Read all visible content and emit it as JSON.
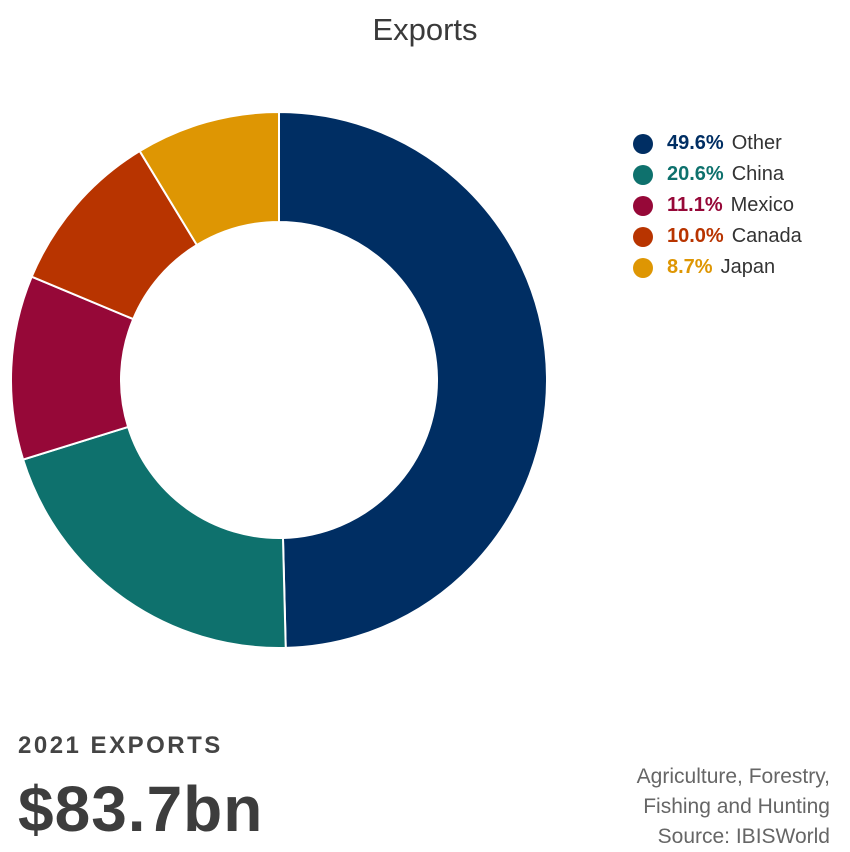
{
  "header": {
    "title": "Exports"
  },
  "chart_data": {
    "type": "pie",
    "title": "Exports",
    "donut": true,
    "start_angle_deg": 0,
    "direction": "clockwise",
    "slices": [
      {
        "label": "Other",
        "value": 49.6,
        "display": "49.6%",
        "color": "#002e63"
      },
      {
        "label": "China",
        "value": 20.6,
        "display": "20.6%",
        "color": "#0e716d"
      },
      {
        "label": "Mexico",
        "value": 11.1,
        "display": "11.1%",
        "color": "#960838"
      },
      {
        "label": "Canada",
        "value": 10.0,
        "display": "10.0%",
        "color": "#b83400"
      },
      {
        "label": "Japan",
        "value": 8.7,
        "display": "8.7%",
        "color": "#de9603"
      }
    ],
    "legend_position": "right"
  },
  "stat": {
    "label": "2021 EXPORTS",
    "value": "$83.7bn"
  },
  "footer": {
    "line1": "Agriculture, Forestry,",
    "line2": "Fishing and Hunting",
    "line3": "Source: IBISWorld"
  }
}
